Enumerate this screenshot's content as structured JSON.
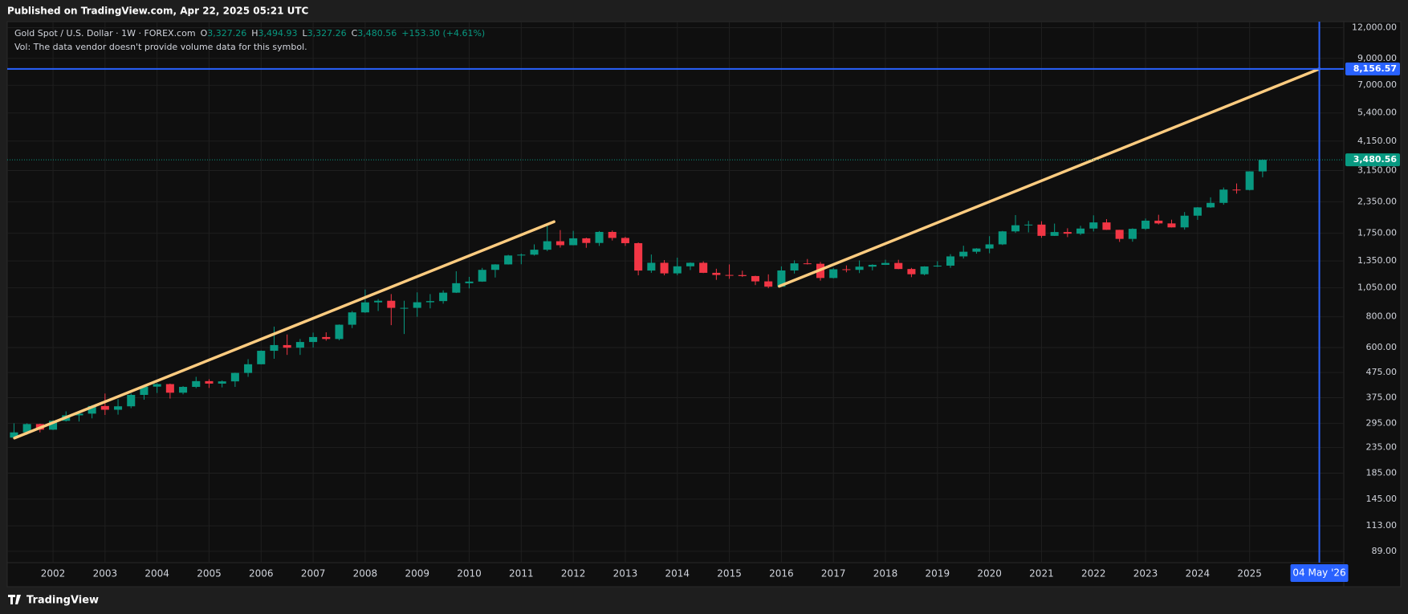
{
  "header": {
    "published": "Published on TradingView.com, Apr 22, 2025 05:21 UTC"
  },
  "footer": {
    "brand": "TradingView"
  },
  "chart_data": {
    "type": "candlestick",
    "legend": {
      "symbol": "Gold Spot / U.S. Dollar · 1W · FOREX.com",
      "ohlc": [
        {
          "key": "O",
          "value": "3,327.26"
        },
        {
          "key": "H",
          "value": "3,494.93"
        },
        {
          "key": "L",
          "value": "3,327.26"
        },
        {
          "key": "C",
          "value": "3,480.56"
        }
      ],
      "change": "+153.30 (+4.61%)",
      "volume_note": "Vol: The data vendor doesn't provide volume data for this symbol."
    },
    "yscale": "log",
    "grid": true,
    "xlim": [
      2001.12,
      2026.81
    ],
    "xticks": [
      2002,
      2003,
      2004,
      2005,
      2006,
      2007,
      2008,
      2009,
      2010,
      2011,
      2012,
      2013,
      2014,
      2015,
      2016,
      2017,
      2018,
      2019,
      2020,
      2021,
      2022,
      2023,
      2024,
      2025
    ],
    "ylim": [
      80,
      12700
    ],
    "yticks": [
      {
        "value": 89,
        "label": "89.00"
      },
      {
        "value": 113,
        "label": "113.00"
      },
      {
        "value": 145,
        "label": "145.00"
      },
      {
        "value": 185,
        "label": "185.00"
      },
      {
        "value": 235,
        "label": "235.00"
      },
      {
        "value": 295,
        "label": "295.00"
      },
      {
        "value": 375,
        "label": "375.00"
      },
      {
        "value": 475,
        "label": "475.00"
      },
      {
        "value": 600,
        "label": "600.00"
      },
      {
        "value": 800,
        "label": "800.00"
      },
      {
        "value": 1050,
        "label": "1,050.00"
      },
      {
        "value": 1350,
        "label": "1,350.00"
      },
      {
        "value": 1750,
        "label": "1,750.00"
      },
      {
        "value": 2350,
        "label": "2,350.00"
      },
      {
        "value": 3150,
        "label": "3,150.00"
      },
      {
        "value": 4150,
        "label": "4,150.00"
      },
      {
        "value": 5400,
        "label": "5,400.00"
      },
      {
        "value": 7000,
        "label": "7,000.00"
      },
      {
        "value": 9000,
        "label": "9,000.00"
      },
      {
        "value": 12000,
        "label": "12,000.00"
      }
    ],
    "up_color": "#089981",
    "down_color": "#f23645",
    "x": [
      2001.25,
      2001.5,
      2001.75,
      2002,
      2002.25,
      2002.5,
      2002.75,
      2003,
      2003.25,
      2003.5,
      2003.75,
      2004,
      2004.25,
      2004.5,
      2004.75,
      2005,
      2005.25,
      2005.5,
      2005.75,
      2006,
      2006.25,
      2006.5,
      2006.75,
      2007,
      2007.25,
      2007.5,
      2007.75,
      2008,
      2008.25,
      2008.5,
      2008.75,
      2009,
      2009.25,
      2009.5,
      2009.75,
      2010,
      2010.25,
      2010.5,
      2010.75,
      2011,
      2011.25,
      2011.5,
      2011.75,
      2012,
      2012.25,
      2012.5,
      2012.75,
      2013,
      2013.25,
      2013.5,
      2013.75,
      2014,
      2014.25,
      2014.5,
      2014.75,
      2015,
      2015.25,
      2015.5,
      2015.75,
      2016,
      2016.25,
      2016.5,
      2016.75,
      2017,
      2017.25,
      2017.5,
      2017.75,
      2018,
      2018.25,
      2018.5,
      2018.75,
      2019,
      2019.25,
      2019.5,
      2019.75,
      2020,
      2020.25,
      2020.5,
      2020.75,
      2021,
      2021.25,
      2021.5,
      2021.75,
      2022,
      2022.25,
      2022.5,
      2022.75,
      2023,
      2023.25,
      2023.5,
      2023.75,
      2024,
      2024.25,
      2024.5,
      2024.75,
      2025,
      2025.25
    ],
    "open": [
      258,
      271,
      293,
      278,
      302,
      318,
      323,
      347,
      335,
      346,
      385,
      416,
      426,
      393,
      415,
      438,
      428,
      437,
      473,
      513,
      582,
      614,
      599,
      632,
      662,
      650,
      743,
      834,
      916,
      930,
      870,
      870,
      917,
      927,
      1003,
      1096,
      1113,
      1242,
      1307,
      1421,
      1432,
      1500,
      1624,
      1565,
      1669,
      1598,
      1772,
      1675,
      1595,
      1234,
      1327,
      1202,
      1284,
      1327,
      1208,
      1184,
      1183,
      1172,
      1115,
      1061,
      1235,
      1320,
      1315,
      1151,
      1249,
      1242,
      1280,
      1302,
      1325,
      1252,
      1192,
      1282,
      1292,
      1409,
      1472,
      1517,
      1577,
      1781,
      1886,
      1898,
      1708,
      1770,
      1743,
      1829,
      1937,
      1807,
      1660,
      1824,
      1969,
      1919,
      1849,
      2063,
      2230,
      2326,
      2634,
      2625,
      3124
    ],
    "high": [
      295,
      295,
      294,
      304,
      330,
      330,
      350,
      390,
      370,
      390,
      417,
      430,
      428,
      418,
      456,
      446,
      441,
      474,
      538,
      584,
      730,
      678,
      650,
      690,
      692,
      745,
      845,
      1033,
      945,
      990,
      930,
      1006,
      990,
      1025,
      1226,
      1163,
      1265,
      1310,
      1430,
      1447,
      1577,
      1921,
      1803,
      1790,
      1680,
      1787,
      1796,
      1693,
      1605,
      1434,
      1361,
      1392,
      1332,
      1345,
      1255,
      1307,
      1232,
      1176,
      1191,
      1283,
      1358,
      1375,
      1337,
      1264,
      1295,
      1357,
      1309,
      1366,
      1365,
      1265,
      1285,
      1347,
      1439,
      1557,
      1522,
      1703,
      1789,
      2075,
      1965,
      1959,
      1916,
      1834,
      1877,
      2070,
      1998,
      1807,
      1833,
      2009,
      2081,
      1987,
      2135,
      2236,
      2450,
      2686,
      2790,
      3128,
      3495
    ],
    "low": [
      256,
      265,
      271,
      277,
      300,
      300,
      309,
      319,
      320,
      340,
      368,
      392,
      372,
      387,
      410,
      411,
      413,
      415,
      456,
      512,
      540,
      560,
      560,
      600,
      640,
      642,
      720,
      830,
      845,
      740,
      681,
      800,
      866,
      905,
      1000,
      1044,
      1110,
      1156,
      1305,
      1309,
      1420,
      1480,
      1530,
      1563,
      1527,
      1555,
      1635,
      1555,
      1180,
      1208,
      1180,
      1182,
      1240,
      1205,
      1131,
      1142,
      1162,
      1077,
      1046,
      1061,
      1200,
      1306,
      1123,
      1146,
      1214,
      1205,
      1236,
      1300,
      1250,
      1160,
      1180,
      1276,
      1266,
      1381,
      1445,
      1451,
      1567,
      1757,
      1764,
      1677,
      1706,
      1688,
      1722,
      1780,
      1805,
      1614,
      1617,
      1805,
      1900,
      1846,
      1810,
      1984,
      2220,
      2286,
      2536,
      2614,
      2957
    ],
    "close": [
      271,
      293,
      278,
      302,
      318,
      323,
      347,
      335,
      346,
      385,
      416,
      426,
      393,
      415,
      438,
      428,
      437,
      473,
      513,
      582,
      614,
      599,
      632,
      662,
      650,
      743,
      834,
      916,
      930,
      870,
      870,
      917,
      927,
      1003,
      1096,
      1113,
      1242,
      1307,
      1421,
      1432,
      1500,
      1624,
      1565,
      1669,
      1598,
      1772,
      1675,
      1595,
      1234,
      1327,
      1202,
      1284,
      1327,
      1208,
      1184,
      1183,
      1172,
      1115,
      1061,
      1235,
      1320,
      1315,
      1151,
      1249,
      1242,
      1280,
      1302,
      1325,
      1252,
      1192,
      1282,
      1292,
      1409,
      1472,
      1517,
      1577,
      1781,
      1886,
      1898,
      1708,
      1770,
      1743,
      1829,
      1937,
      1807,
      1660,
      1824,
      1969,
      1919,
      1849,
      2063,
      2230,
      2326,
      2634,
      2625,
      3124,
      3480.56
    ],
    "trendline_color": "#ffcc80",
    "trendlines": [
      {
        "x": [
          2001.26,
          2011.63
        ],
        "values": [
          257,
          1950
        ]
      },
      {
        "x": [
          2015.96,
          2026.34
        ],
        "values": [
          1065,
          8156.57
        ]
      }
    ],
    "last_price": {
      "value": 3480.56,
      "label": "3,480.56",
      "color": "#089981"
    },
    "horizontal_line": {
      "value": 8156.57,
      "label": "8,156.57",
      "color": "#2962ff"
    },
    "vertical_line": {
      "x": 2026.34,
      "label": "04 May '26",
      "color": "#2962ff"
    }
  }
}
